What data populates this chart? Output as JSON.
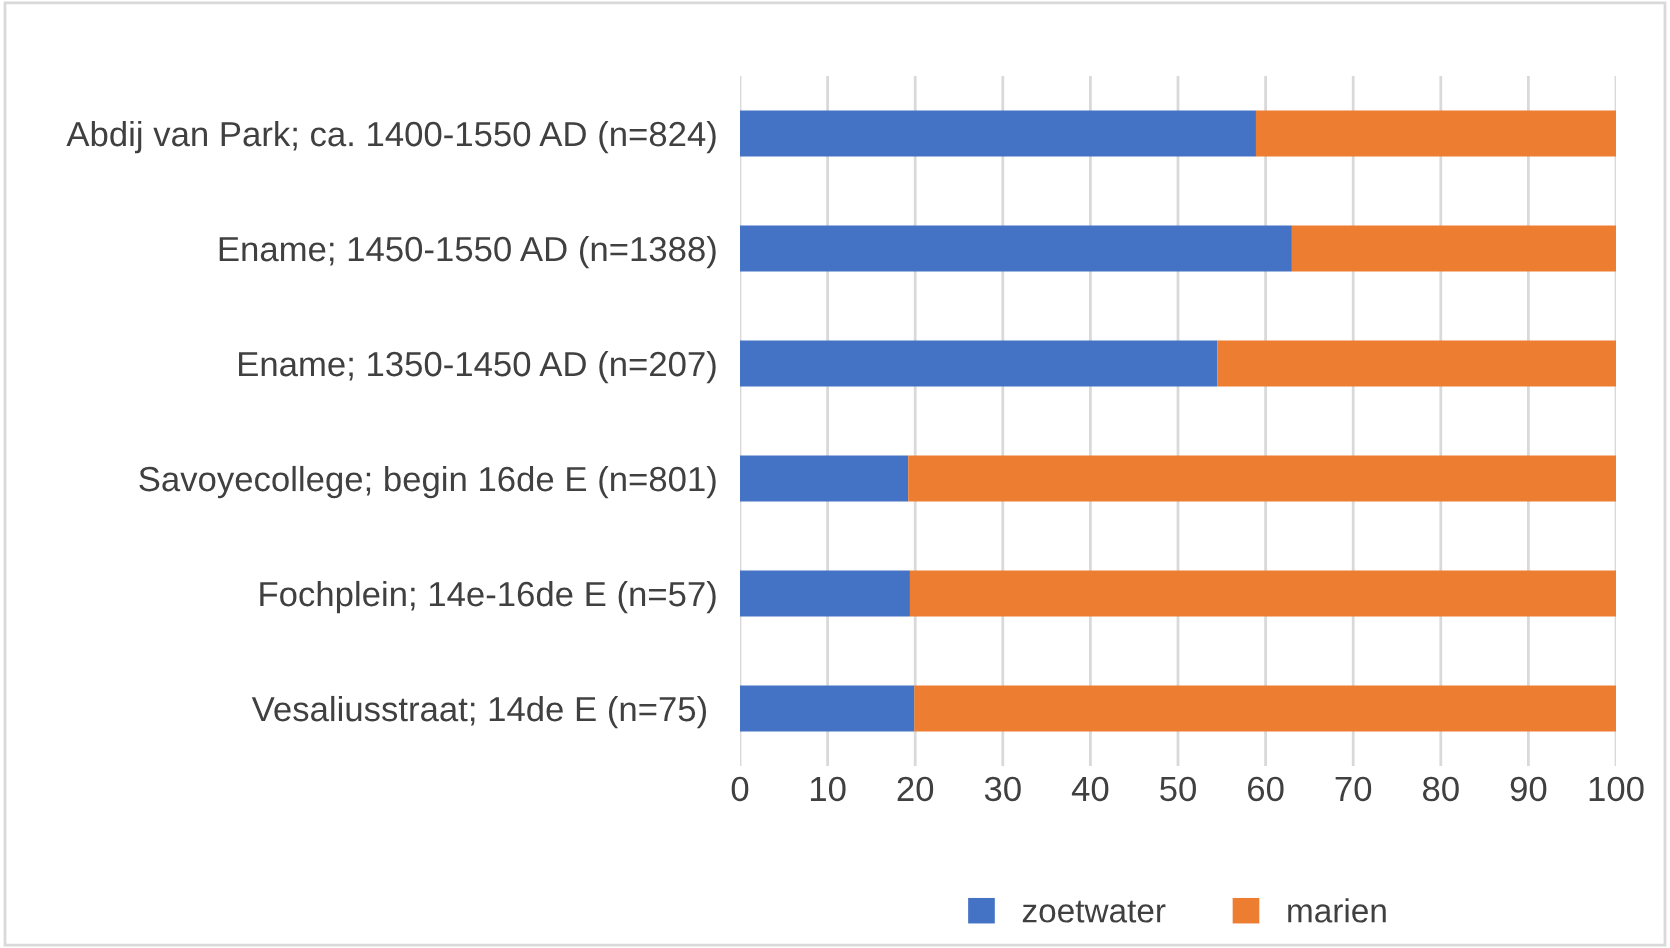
{
  "chart_data": {
    "type": "bar",
    "orientation": "horizontal",
    "stacked": true,
    "categories": [
      "Abdij van Park; ca. 1400-1550 AD (n=824)",
      "Ename; 1450-1550 AD (n=1388)",
      "Ename; 1350-1450 AD (n=207)",
      "Savoyecollege; begin 16de E (n=801)",
      "Fochplein; 14e-16de E (n=57)",
      "Vesaliusstraat; 14de E (n=75) "
    ],
    "series": [
      {
        "name": "zoetwater",
        "color": "#4472c4",
        "values": [
          58.9,
          63.0,
          54.5,
          19.2,
          19.4,
          19.9
        ]
      },
      {
        "name": "marien",
        "color": "#ed7d31",
        "values": [
          41.1,
          37.0,
          45.5,
          80.8,
          80.6,
          80.1
        ]
      }
    ],
    "xlim": [
      0,
      100
    ],
    "xticks": [
      0,
      10,
      20,
      30,
      40,
      50,
      60,
      70,
      80,
      90,
      100
    ],
    "grid": "x",
    "legend": "bottom"
  }
}
